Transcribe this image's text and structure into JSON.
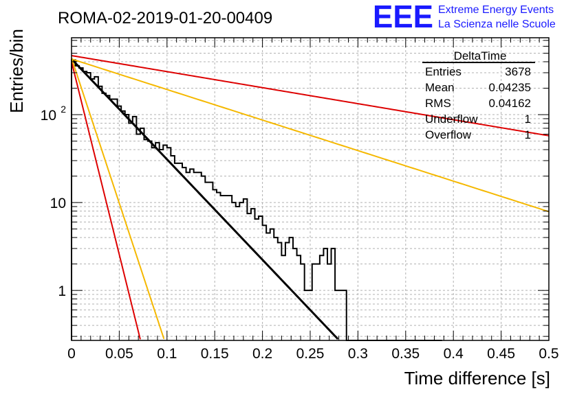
{
  "chart_data": {
    "type": "histogram",
    "title": "ROMA-02-2019-01-20-00409",
    "xlabel": "Time difference [s]",
    "ylabel": "Entries/bin",
    "xlim": [
      0,
      0.5
    ],
    "ylim": [
      0.27,
      750
    ],
    "yscale": "log",
    "grid": true,
    "x_ticks": [
      "0",
      "0.05",
      "0.1",
      "0.15",
      "0.2",
      "0.25",
      "0.3",
      "0.35",
      "0.4",
      "0.45",
      "0.5"
    ],
    "y_ticks": [
      "1",
      "10",
      "10^2"
    ],
    "bin_width": 0.004,
    "histogram": {
      "bin_start": 0,
      "values": [
        420,
        360,
        340,
        310,
        300,
        255,
        270,
        210,
        175,
        165,
        150,
        150,
        125,
        110,
        100,
        80,
        95,
        60,
        70,
        52,
        50,
        42,
        48,
        40,
        45,
        42,
        34,
        28,
        28,
        25,
        22,
        24,
        22,
        22,
        20,
        17,
        17,
        14,
        13,
        12,
        12,
        12,
        10,
        9,
        10,
        11,
        7.5,
        8.5,
        6.5,
        7,
        5.5,
        4.5,
        5,
        4,
        3.5,
        2.5,
        3.5,
        4,
        3,
        2.5,
        2,
        1,
        1,
        2,
        2,
        2.5,
        3,
        2,
        3,
        1,
        1,
        1,
        0.25,
        0.25,
        0.25,
        0.25,
        0.25,
        0.25,
        0.25,
        0.25,
        0.25,
        0.25,
        0.25,
        0.25,
        0.25,
        0.25,
        0.25,
        0.25,
        0.25,
        0.25,
        0.25,
        0.25,
        0.25,
        0.25,
        0.25,
        0.25,
        0.25
      ]
    },
    "curves": [
      {
        "color": "#000000",
        "y0": 430,
        "decay": 26.3,
        "x_end": 0.31
      },
      {
        "color": "#dd0000",
        "y0": 470,
        "decay": 4.2,
        "x_end": 0.5
      },
      {
        "color": "#f5b800",
        "y0": 430,
        "decay": 8.0,
        "x_end": 0.5
      },
      {
        "color": "#dd0000",
        "y0": 400,
        "decay": 101,
        "x_end": 0.1
      },
      {
        "color": "#f5b800",
        "y0": 440,
        "decay": 76,
        "x_end": 0.11
      }
    ],
    "stats": {
      "title": "DeltaTime",
      "rows": [
        {
          "label": "Entries",
          "value": "3678"
        },
        {
          "label": "Mean",
          "value": "0.04235"
        },
        {
          "label": "RMS",
          "value": "0.04162"
        },
        {
          "label": "Underflow",
          "value": "1"
        },
        {
          "label": "Overflow",
          "value": "1"
        }
      ]
    },
    "logo": {
      "text": "EEE",
      "line1": "Extreme Energy Events",
      "line2": "La Scienza nelle Scuole",
      "color": "#1a1aff"
    }
  }
}
